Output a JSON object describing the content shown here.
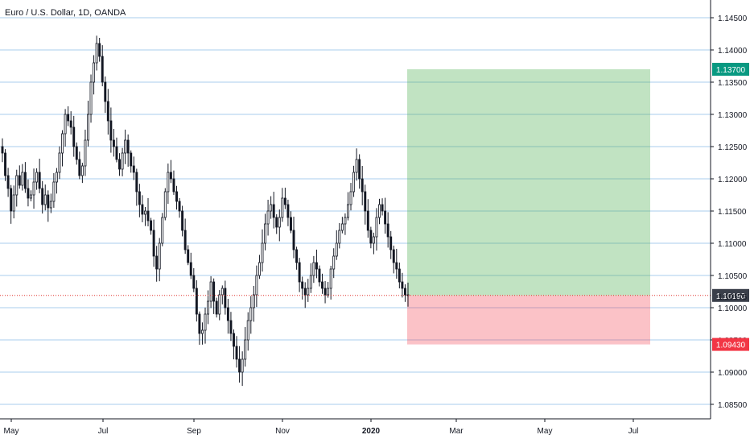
{
  "chart_data": {
    "type": "candlestick",
    "title": "Euro / U.S. Dollar, 1D, OANDA",
    "y_ticks": [
      "1.14500",
      "1.14000",
      "1.13500",
      "1.13000",
      "1.12500",
      "1.12000",
      "1.11500",
      "1.11000",
      "1.10500",
      "1.10000",
      "1.09500",
      "1.09000",
      "1.08500"
    ],
    "ylim": [
      1.0835,
      1.147
    ],
    "x_ticks": [
      "May",
      "Jul",
      "Sep",
      "Nov",
      "2020",
      "Mar",
      "May",
      "Jul"
    ],
    "x_tick_bold": "2020",
    "grid": true,
    "close_series": [
      1.124,
      1.1205,
      1.1185,
      1.115,
      1.1175,
      1.1205,
      1.119,
      1.121,
      1.1185,
      1.117,
      1.1175,
      1.1195,
      1.121,
      1.1185,
      1.116,
      1.1175,
      1.1155,
      1.1165,
      1.1195,
      1.121,
      1.124,
      1.127,
      1.13,
      1.129,
      1.128,
      1.125,
      1.123,
      1.1205,
      1.122,
      1.126,
      1.13,
      1.135,
      1.138,
      1.141,
      1.139,
      1.135,
      1.132,
      1.129,
      1.126,
      1.125,
      1.123,
      1.1215,
      1.124,
      1.126,
      1.124,
      1.122,
      1.121,
      1.118,
      1.116,
      1.1145,
      1.115,
      1.1135,
      1.112,
      1.108,
      1.106,
      1.11,
      1.114,
      1.118,
      1.121,
      1.12,
      1.118,
      1.1165,
      1.115,
      1.112,
      1.109,
      1.107,
      1.105,
      1.103,
      1.099,
      1.096,
      1.0965,
      1.099,
      1.101,
      1.104,
      1.101,
      1.099,
      1.102,
      1.103,
      1.1,
      1.098,
      1.096,
      1.094,
      1.092,
      1.09,
      1.092,
      1.095,
      1.098,
      1.1,
      1.102,
      1.105,
      1.107,
      1.11,
      1.113,
      1.115,
      1.116,
      1.114,
      1.1125,
      1.114,
      1.117,
      1.116,
      1.114,
      1.112,
      1.109,
      1.107,
      1.104,
      1.103,
      1.102,
      1.103,
      1.105,
      1.107,
      1.106,
      1.104,
      1.103,
      1.102,
      1.103,
      1.106,
      1.108,
      1.11,
      1.112,
      1.113,
      1.114,
      1.116,
      1.118,
      1.121,
      1.123,
      1.12,
      1.118,
      1.115,
      1.112,
      1.11,
      1.111,
      1.114,
      1.116,
      1.115,
      1.113,
      1.111,
      1.109,
      1.107,
      1.106,
      1.104,
      1.103,
      1.102,
      1.1019
    ],
    "position": {
      "type": "long",
      "take_profit": 1.137,
      "entry": 1.1019,
      "stop_loss": 1.0943
    },
    "price_tags": [
      {
        "label": "1.13700",
        "color": "#089981",
        "value": 1.137
      },
      {
        "label": "1.10190",
        "color": "#3a3f4a",
        "value": 1.1019
      },
      {
        "label": "1.10175",
        "color": "none",
        "value": 1.10175
      },
      {
        "label": "1.09430",
        "color": "#f23645",
        "value": 1.0943
      }
    ]
  }
}
